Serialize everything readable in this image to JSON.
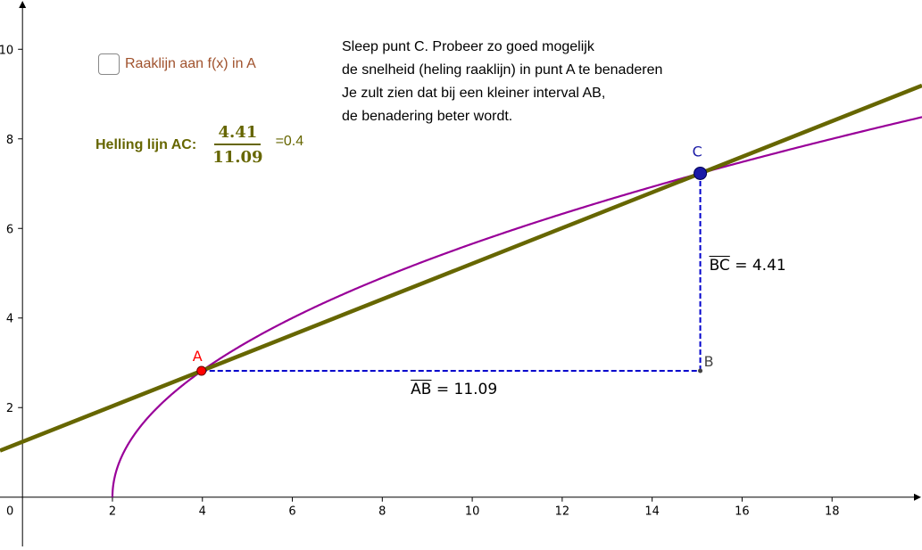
{
  "chart_data": {
    "type": "line",
    "xlim": [
      -0.5,
      20
    ],
    "ylim": [
      -1.1,
      11.1
    ],
    "x_ticks": [
      0,
      2,
      4,
      6,
      8,
      10,
      12,
      14,
      16,
      18
    ],
    "y_ticks": [
      2,
      4,
      6,
      8,
      10
    ],
    "grid": false,
    "curve": {
      "expression": "f(x) = 2*sqrt(x-2)",
      "domain_start": 2,
      "color": "#990099"
    },
    "secant_line": {
      "through": [
        "A",
        "C"
      ],
      "slope": 0.4,
      "color": "#666600"
    },
    "points": {
      "A": {
        "label": "A",
        "x": 3.98,
        "y": 2.82,
        "color": "#ff0000"
      },
      "B": {
        "label": "B",
        "x": 15.07,
        "y": 2.82,
        "color": "#444444"
      },
      "C": {
        "label": "C",
        "x": 15.07,
        "y": 7.23,
        "color": "#1a1aa6"
      }
    },
    "segments": {
      "AB": {
        "name": "AB",
        "value": "11.09"
      },
      "BC": {
        "name": "BC",
        "value": "4.41"
      }
    }
  },
  "checkbox": {
    "label": "Raaklijn aan f(x) in A",
    "checked": false
  },
  "instructions": [
    "Sleep punt C. Probeer zo goed mogelijk",
    "de snelheid (heling raaklijn) in punt A te benaderen",
    "Je zult zien dat bij een kleiner interval AB,",
    "de benadering beter wordt."
  ],
  "slope": {
    "label": "Helling lijn AC:",
    "numerator": "4.41",
    "denominator": "11.09",
    "result": "=0.4"
  },
  "equals": "="
}
